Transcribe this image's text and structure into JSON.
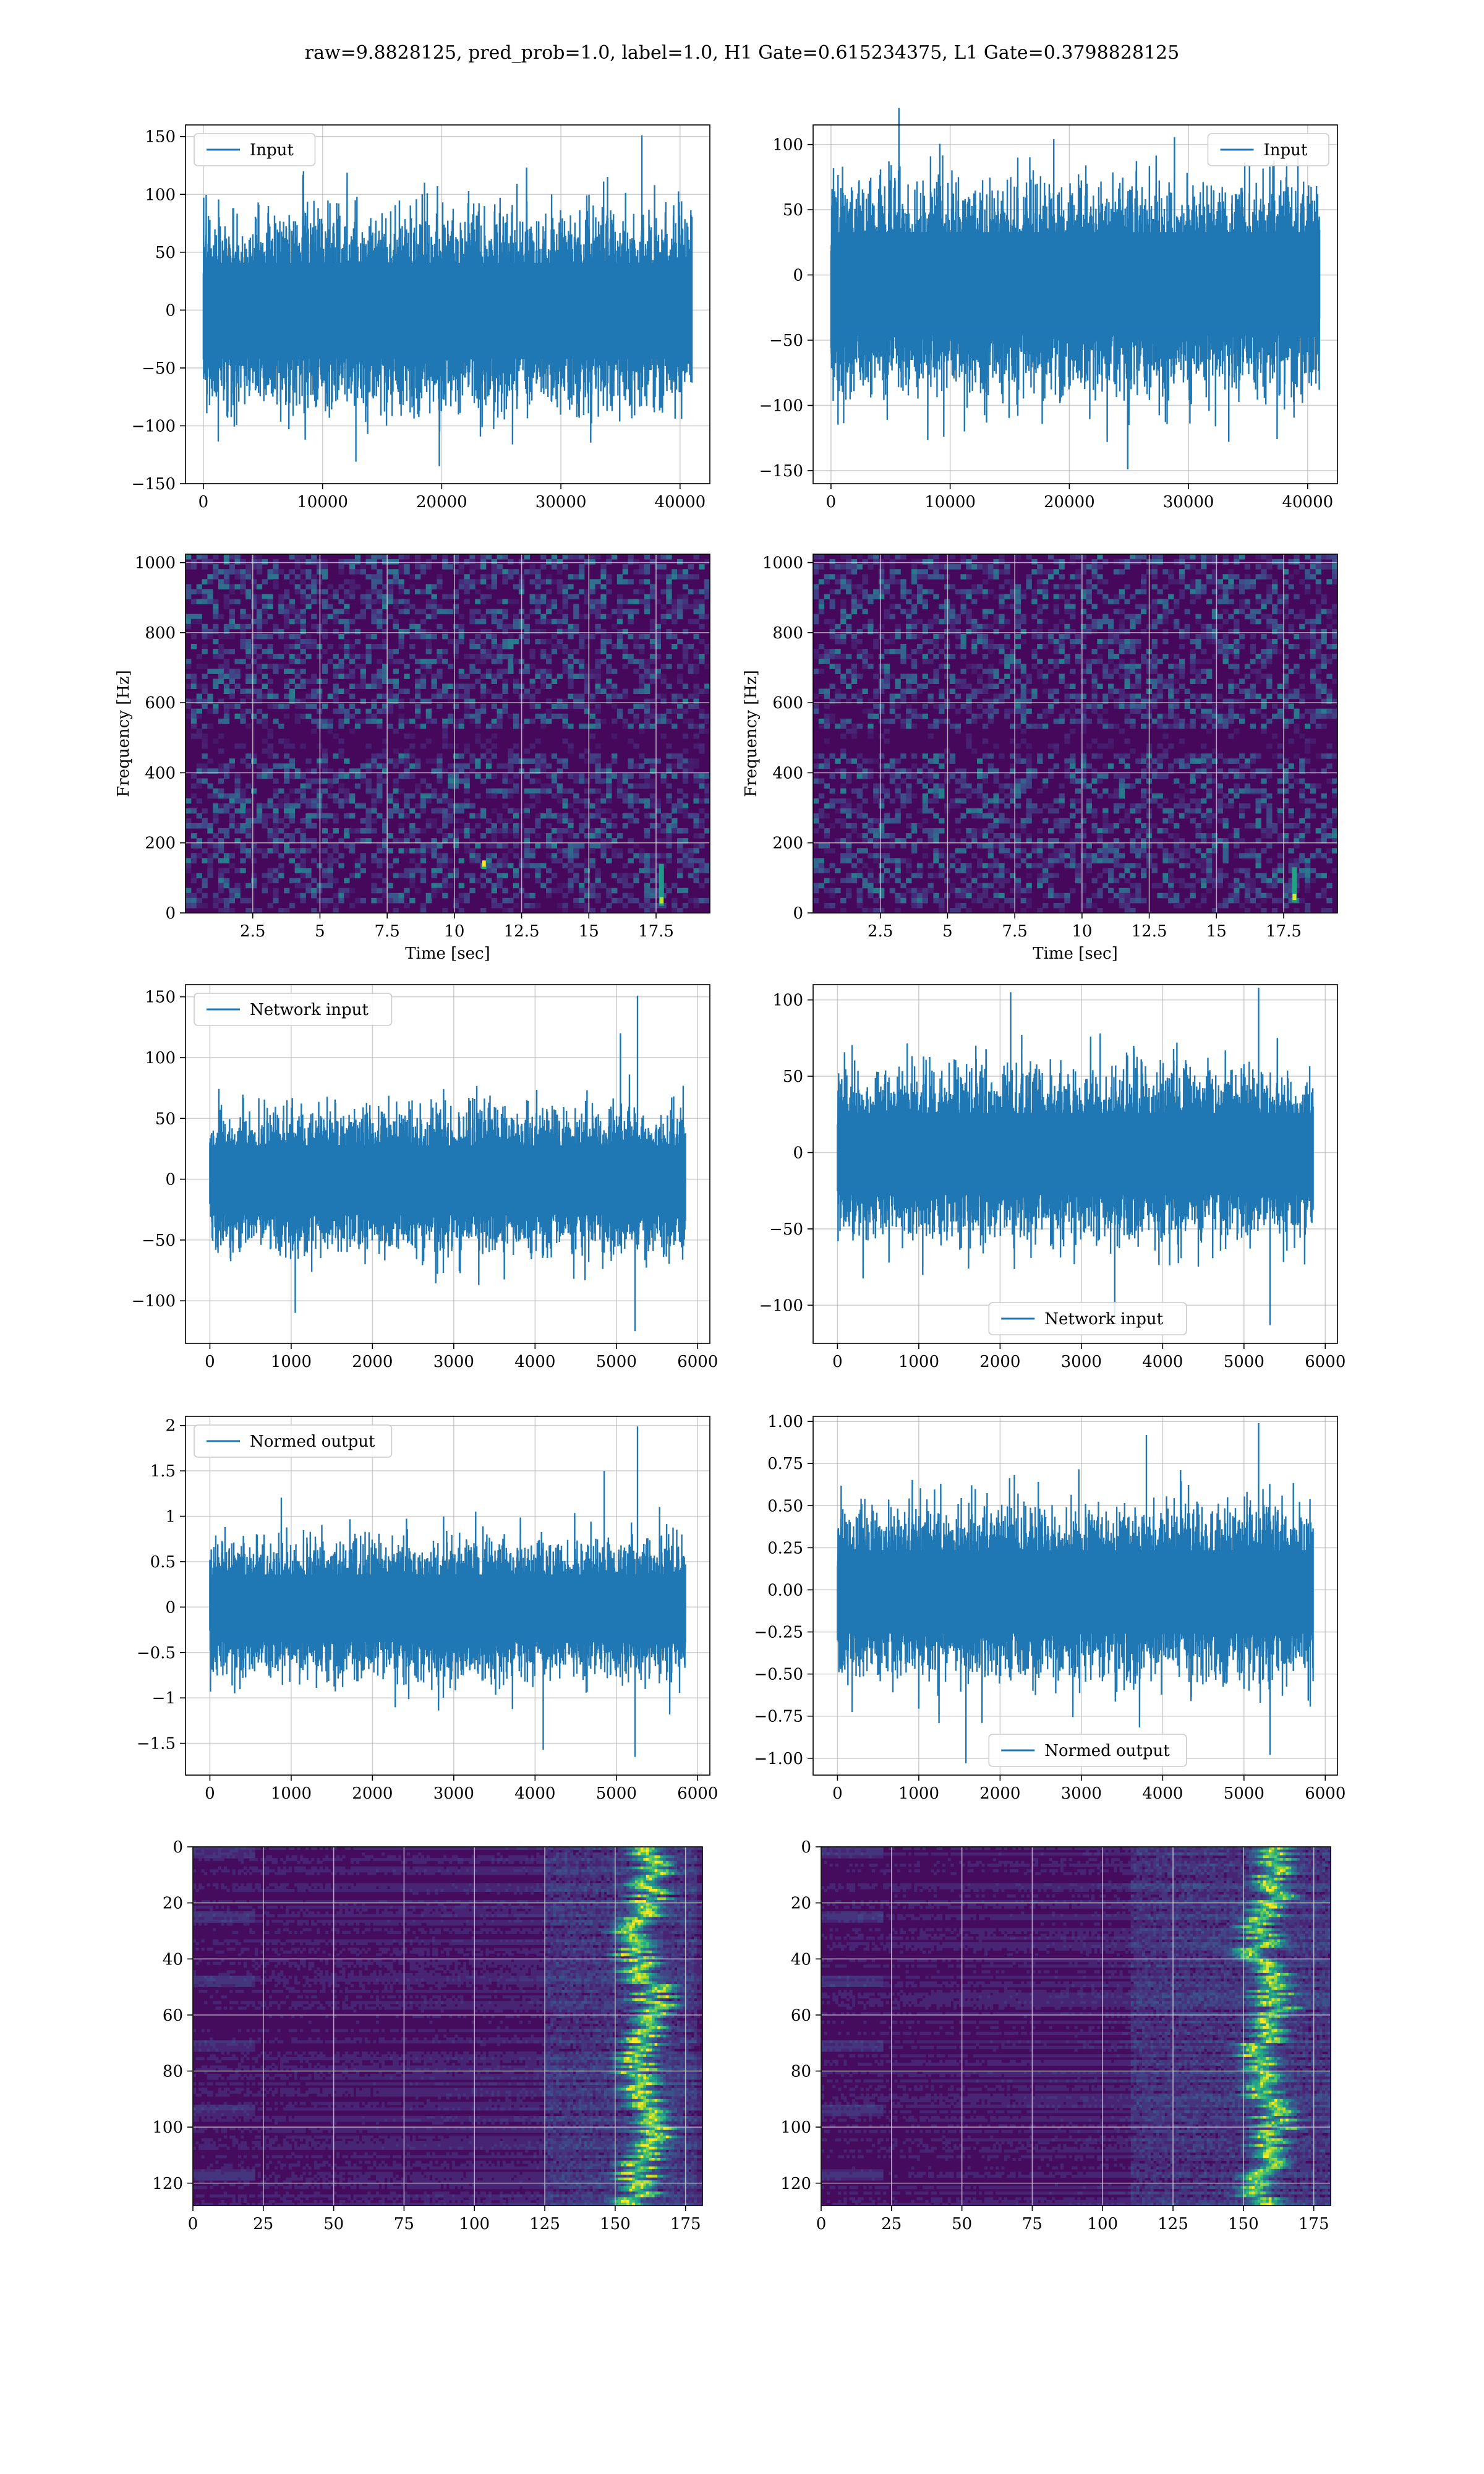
{
  "figure_title": "raw=9.8828125, pred_prob=1.0, label=1.0, H1 Gate=0.615234375, L1 Gate=0.3798828125",
  "colors": {
    "line": "#1f77b4",
    "axes_edge": "#000000",
    "grid": "#b0b0b0",
    "viridis_low": "#440154",
    "viridis_mid": "#21918c",
    "viridis_high": "#fde725"
  },
  "chart_data": [
    {
      "id": "h1-input",
      "type": "line",
      "title": "",
      "xlabel": "",
      "ylabel": "",
      "legend": "top-left",
      "grid": true,
      "xlim": [
        -1500,
        42500
      ],
      "ylim": [
        -150,
        160
      ],
      "x_ticks": [
        0,
        10000,
        20000,
        30000,
        40000
      ],
      "y_ticks": [
        -150,
        -100,
        -50,
        0,
        50,
        100,
        150
      ],
      "series": [
        {
          "name": "Input",
          "x_range": [
            0,
            41000
          ],
          "band": [
            -68,
            66
          ],
          "min": -135,
          "max": 151,
          "peaks": [
            {
              "x": 36800,
              "y": 151
            },
            {
              "x": 19800,
              "y": -135
            },
            {
              "x": 12800,
              "y": -131
            },
            {
              "x": 8400,
              "y": 120
            }
          ]
        }
      ]
    },
    {
      "id": "l1-input",
      "type": "line",
      "title": "",
      "xlabel": "",
      "ylabel": "",
      "legend": "top-right",
      "grid": true,
      "xlim": [
        -1500,
        42500
      ],
      "ylim": [
        -160,
        115
      ],
      "x_ticks": [
        0,
        10000,
        20000,
        30000,
        40000
      ],
      "y_ticks": [
        -150,
        -100,
        -50,
        0,
        50,
        100
      ],
      "series": [
        {
          "name": "Input",
          "x_range": [
            0,
            41000
          ],
          "band": [
            -75,
            53
          ],
          "min": -149,
          "max": 128,
          "peaks": [
            {
              "x": 5700,
              "y": 128
            },
            {
              "x": 24900,
              "y": -149
            },
            {
              "x": 11200,
              "y": -120
            }
          ]
        }
      ]
    },
    {
      "id": "h1-spectrogram",
      "type": "heatmap",
      "title": "",
      "xlabel": "Time [sec]",
      "ylabel": "Frequency [Hz]",
      "grid": true,
      "xlim": [
        0,
        19.5
      ],
      "ylim": [
        0,
        1024
      ],
      "x_ticks": [
        2.5,
        5.0,
        7.5,
        10.0,
        12.5,
        15.0,
        17.5
      ],
      "y_ticks": [
        0,
        200,
        400,
        600,
        800,
        1000
      ],
      "colormap": "viridis",
      "features": [
        {
          "x": 17.7,
          "y": [
            20,
            140
          ],
          "intensity": 0.9
        },
        {
          "x": 11.1,
          "y": [
            125,
            135
          ],
          "intensity": 1.0
        }
      ]
    },
    {
      "id": "l1-spectrogram",
      "type": "heatmap",
      "title": "",
      "xlabel": "Time [sec]",
      "ylabel": "Frequency [Hz]",
      "grid": true,
      "xlim": [
        0,
        19.5
      ],
      "ylim": [
        0,
        1024
      ],
      "x_ticks": [
        2.5,
        5.0,
        7.5,
        10.0,
        12.5,
        15.0,
        17.5
      ],
      "y_ticks": [
        0,
        200,
        400,
        600,
        800,
        1000
      ],
      "colormap": "viridis",
      "features": [
        {
          "x": 17.9,
          "y": [
            30,
            130
          ],
          "intensity": 0.95
        }
      ]
    },
    {
      "id": "h1-network-input",
      "type": "line",
      "title": "",
      "xlabel": "",
      "ylabel": "",
      "legend": "top-left",
      "grid": true,
      "xlim": [
        -300,
        6150
      ],
      "ylim": [
        -135,
        160
      ],
      "x_ticks": [
        0,
        1000,
        2000,
        3000,
        4000,
        5000,
        6000
      ],
      "y_ticks": [
        -100,
        -50,
        0,
        50,
        100,
        150
      ],
      "series": [
        {
          "name": "Network input",
          "x_range": [
            0,
            5850
          ],
          "band": [
            -48,
            45
          ],
          "min": -125,
          "max": 151,
          "peaks": [
            {
              "x": 5260,
              "y": 151
            },
            {
              "x": 5050,
              "y": 120
            },
            {
              "x": 1050,
              "y": -110
            },
            {
              "x": 5230,
              "y": -125
            }
          ]
        }
      ]
    },
    {
      "id": "l1-network-input",
      "type": "line",
      "title": "",
      "xlabel": "",
      "ylabel": "",
      "legend": "bottom-center",
      "grid": true,
      "xlim": [
        -300,
        6150
      ],
      "ylim": [
        -125,
        110
      ],
      "x_ticks": [
        0,
        1000,
        2000,
        3000,
        4000,
        5000,
        6000
      ],
      "y_ticks": [
        -100,
        -50,
        0,
        50,
        100
      ],
      "series": [
        {
          "name": "Network input",
          "x_range": [
            0,
            5850
          ],
          "band": [
            -45,
            42
          ],
          "min": -113,
          "max": 108,
          "peaks": [
            {
              "x": 2130,
              "y": 105
            },
            {
              "x": 5180,
              "y": 108
            },
            {
              "x": 3410,
              "y": -107
            },
            {
              "x": 5320,
              "y": -113
            }
          ]
        }
      ]
    },
    {
      "id": "h1-normed-output",
      "type": "line",
      "title": "",
      "xlabel": "",
      "ylabel": "",
      "legend": "top-left",
      "grid": true,
      "xlim": [
        -300,
        6150
      ],
      "ylim": [
        -1.85,
        2.1
      ],
      "x_ticks": [
        0,
        1000,
        2000,
        3000,
        4000,
        5000,
        6000
      ],
      "y_ticks": [
        -1.5,
        -1.0,
        -0.5,
        0.0,
        0.5,
        1.0,
        1.5,
        2.0
      ],
      "series": [
        {
          "name": "Normed output",
          "x_range": [
            0,
            5850
          ],
          "band": [
            -0.62,
            0.58
          ],
          "min": -1.65,
          "max": 1.99,
          "peaks": [
            {
              "x": 5260,
              "y": 1.99
            },
            {
              "x": 4850,
              "y": 1.5
            },
            {
              "x": 4100,
              "y": -1.57
            },
            {
              "x": 5230,
              "y": -1.65
            }
          ]
        }
      ]
    },
    {
      "id": "l1-normed-output",
      "type": "line",
      "title": "",
      "xlabel": "",
      "ylabel": "",
      "legend": "bottom-center",
      "grid": true,
      "xlim": [
        -300,
        6150
      ],
      "ylim": [
        -1.1,
        1.03
      ],
      "x_ticks": [
        0,
        1000,
        2000,
        3000,
        4000,
        5000,
        6000
      ],
      "y_ticks": [
        -1.0,
        -0.75,
        -0.5,
        -0.25,
        0.0,
        0.25,
        0.5,
        0.75,
        1.0
      ],
      "y_tick_labels": [
        "−1.00",
        "−0.75",
        "−0.50",
        "−0.25",
        "0.00",
        "0.25",
        "0.50",
        "0.75",
        "1.00"
      ],
      "series": [
        {
          "name": "Normed output",
          "x_range": [
            0,
            5850
          ],
          "band": [
            -0.42,
            0.38
          ],
          "min": -1.03,
          "max": 0.99,
          "peaks": [
            {
              "x": 5180,
              "y": 0.99
            },
            {
              "x": 3800,
              "y": 0.92
            },
            {
              "x": 1580,
              "y": -1.03
            },
            {
              "x": 5320,
              "y": -0.98
            }
          ]
        }
      ]
    },
    {
      "id": "h1-activations",
      "type": "heatmap",
      "title": "",
      "xlabel": "",
      "ylabel": "",
      "grid": true,
      "xlim": [
        0,
        181
      ],
      "ylim": [
        128,
        0
      ],
      "x_ticks": [
        0,
        25,
        50,
        75,
        100,
        125,
        150,
        175
      ],
      "y_ticks": [
        0,
        20,
        40,
        60,
        80,
        100,
        120
      ],
      "colormap": "viridis",
      "features": [
        {
          "x": [
            150,
            170
          ],
          "y": [
            0,
            128
          ],
          "center": 160,
          "intensity": 0.9
        }
      ]
    },
    {
      "id": "l1-activations",
      "type": "heatmap",
      "title": "",
      "xlabel": "",
      "ylabel": "",
      "grid": true,
      "xlim": [
        0,
        181
      ],
      "ylim": [
        128,
        0
      ],
      "x_ticks": [
        0,
        25,
        50,
        75,
        100,
        125,
        150,
        175
      ],
      "y_ticks": [
        0,
        20,
        40,
        60,
        80,
        100,
        120
      ],
      "colormap": "viridis",
      "features": [
        {
          "x": [
            135,
            175
          ],
          "y": [
            0,
            128
          ],
          "center": 158,
          "intensity": 0.85
        }
      ]
    }
  ]
}
